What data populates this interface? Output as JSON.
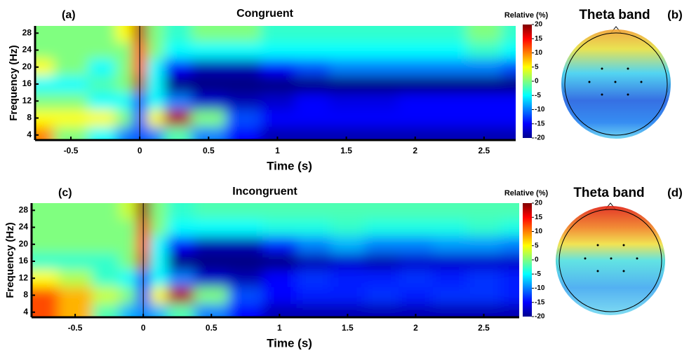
{
  "chart_data": [
    {
      "type": "heatmap",
      "label": "(a)",
      "title": "Congruent",
      "xlabel": "Time (s)",
      "ylabel": "Frequency (Hz)",
      "x": [
        -0.75,
        -0.5,
        -0.25,
        -0.1,
        0,
        0.1,
        0.25,
        0.5,
        0.75,
        1,
        1.25,
        1.5,
        1.75,
        2,
        2.25,
        2.5,
        2.75
      ],
      "y": [
        4,
        8,
        12,
        16,
        20,
        24,
        28
      ],
      "z": [
        [
          10,
          0,
          -5,
          -10,
          -12,
          -10,
          -2,
          -10,
          -15,
          -18,
          -18,
          -18,
          -18,
          -18,
          -18,
          -18,
          -18
        ],
        [
          5,
          5,
          5,
          0,
          -15,
          5,
          18,
          0,
          -12,
          -15,
          -15,
          -15,
          -15,
          -15,
          -15,
          -15,
          -15
        ],
        [
          0,
          0,
          -5,
          -5,
          -15,
          -5,
          -10,
          -17,
          -18,
          -17,
          -15,
          -16,
          -16,
          -15,
          -15,
          -15,
          -15
        ],
        [
          -5,
          -5,
          -2,
          0,
          18,
          -5,
          -20,
          -20,
          -20,
          -20,
          -20,
          -20,
          -20,
          -20,
          -20,
          -20,
          -20
        ],
        [
          5,
          0,
          -5,
          0,
          15,
          -5,
          -15,
          -18,
          -18,
          -15,
          -12,
          -10,
          -10,
          -10,
          -10,
          -10,
          -12
        ],
        [
          0,
          0,
          0,
          0,
          15,
          0,
          -5,
          -5,
          -5,
          -5,
          -5,
          -5,
          -5,
          -5,
          -5,
          -3,
          -5
        ],
        [
          0,
          0,
          0,
          5,
          18,
          0,
          -3,
          0,
          0,
          -3,
          -3,
          -3,
          -3,
          -3,
          -3,
          0,
          -3
        ]
      ],
      "xlim": [
        -0.76,
        2.73
      ],
      "ylim": [
        2.8,
        29.7
      ],
      "xticks": [
        -0.5,
        0,
        0.5,
        1,
        1.5,
        2,
        2.5
      ],
      "yticks": [
        4,
        8,
        12,
        16,
        20,
        24,
        28
      ],
      "colormap": "jet",
      "clim": [
        -20,
        20
      ],
      "cticks": [
        20,
        15,
        10,
        5,
        0,
        -5,
        -10,
        -15,
        -20
      ],
      "colorbar_label": "Relative (%)",
      "topomap_title": "Theta band",
      "topomap_label": "(b)"
    },
    {
      "type": "heatmap",
      "label": "(c)",
      "title": "Incongruent",
      "xlabel": "Time (s)",
      "ylabel": "Frequency (Hz)",
      "x": [
        -0.75,
        -0.5,
        -0.25,
        -0.1,
        0,
        0.1,
        0.25,
        0.5,
        0.75,
        1,
        1.25,
        1.5,
        1.75,
        2,
        2.25,
        2.5,
        2.75
      ],
      "y": [
        4,
        8,
        12,
        16,
        20,
        24,
        28
      ],
      "z": [
        [
          12,
          8,
          -2,
          -8,
          -10,
          -8,
          -2,
          -10,
          -15,
          -18,
          -18,
          -18,
          -18,
          -18,
          -18,
          -18,
          -18
        ],
        [
          12,
          8,
          3,
          0,
          -15,
          5,
          18,
          0,
          -12,
          -15,
          -14,
          -14,
          -13,
          -14,
          -13,
          -13,
          -14
        ],
        [
          5,
          2,
          -3,
          -5,
          -15,
          -5,
          -10,
          -17,
          -18,
          -15,
          -13,
          -14,
          -14,
          -13,
          -14,
          -13,
          -14
        ],
        [
          -3,
          -3,
          -3,
          0,
          17,
          -5,
          -20,
          -20,
          -20,
          -20,
          -18,
          -17,
          -18,
          -17,
          -17,
          -17,
          -17
        ],
        [
          0,
          0,
          0,
          0,
          15,
          -5,
          -15,
          -18,
          -18,
          -14,
          -10,
          -8,
          -10,
          -10,
          -9,
          -9,
          -10
        ],
        [
          0,
          0,
          0,
          0,
          16,
          0,
          -5,
          -5,
          -5,
          -4,
          -4,
          -3,
          -4,
          -4,
          -4,
          -3,
          -4
        ],
        [
          0,
          0,
          0,
          3,
          19,
          0,
          -3,
          -2,
          -2,
          -2,
          -2,
          -2,
          -2,
          -2,
          -2,
          -2,
          -2
        ]
      ],
      "xlim": [
        -0.82,
        2.76
      ],
      "ylim": [
        2.8,
        29.7
      ],
      "xticks": [
        -0.5,
        0,
        0.5,
        1,
        1.5,
        2,
        2.5
      ],
      "yticks": [
        4,
        8,
        12,
        16,
        20,
        24,
        28
      ],
      "colormap": "jet",
      "clim": [
        -20,
        20
      ],
      "cticks": [
        20,
        15,
        10,
        5,
        0,
        -5,
        -10,
        -15,
        -20
      ],
      "colorbar_label": "Relative (%)",
      "topomap_title": "Theta band",
      "topomap_label": "(d)"
    }
  ]
}
